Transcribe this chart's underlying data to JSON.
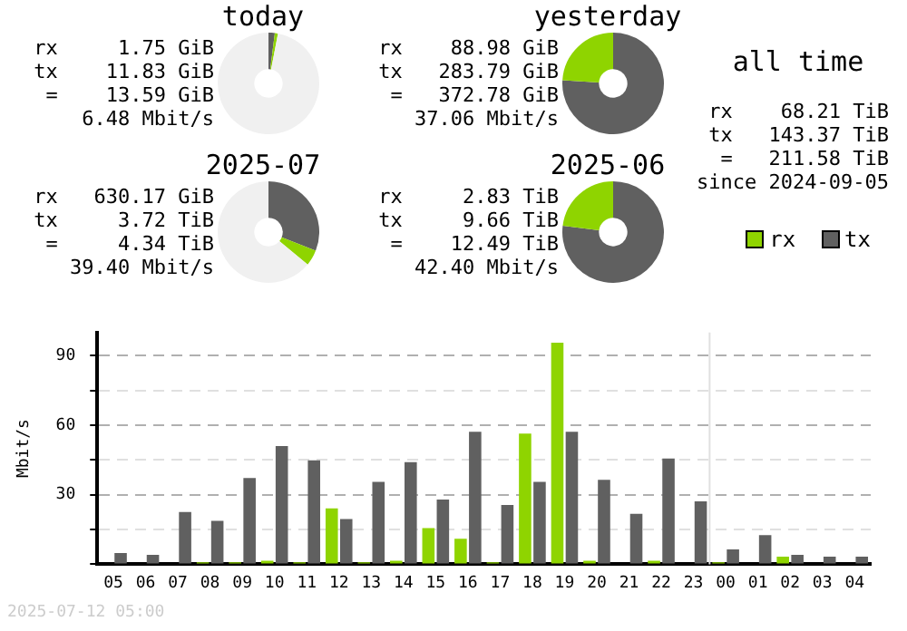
{
  "chart_data": [
    {
      "type": "donut",
      "title": "today",
      "categories": [
        null,
        null,
        null
      ],
      "values": [
        2,
        1,
        97
      ],
      "colors": [
        "#606060",
        "#8fd400",
        "#f0f0f0"
      ],
      "annotations": [
        "rx     1.75 GiB",
        "tx    11.83 GiB",
        " =    13.59 GiB",
        "6.48 Mbit/s"
      ]
    },
    {
      "type": "donut",
      "title": "yesterday",
      "categories": [
        null,
        null
      ],
      "values": [
        76,
        24
      ],
      "colors": [
        "#606060",
        "#8fd400"
      ],
      "annotations": [
        "rx    88.98 GiB",
        "tx   283.79 GiB",
        " =   372.78 GiB",
        "37.06 Mbit/s"
      ]
    },
    {
      "type": "other",
      "title": "all time",
      "annotations": [
        "rx    68.21 TiB",
        "tx   143.37 TiB",
        " =   211.58 TiB",
        "since 2024-09-05"
      ]
    },
    {
      "type": "donut",
      "title": "2025-07",
      "categories": [
        null,
        null,
        null
      ],
      "values": [
        31,
        5,
        64
      ],
      "colors": [
        "#606060",
        "#8fd400",
        "#f0f0f0"
      ],
      "annotations": [
        "rx   630.17 GiB",
        "tx     3.72 TiB",
        " =     4.34 TiB",
        "39.40 Mbit/s"
      ]
    },
    {
      "type": "donut",
      "title": "2025-06",
      "categories": [
        null,
        null
      ],
      "values": [
        77,
        23
      ],
      "colors": [
        "#606060",
        "#8fd400"
      ],
      "annotations": [
        "rx     2.83 TiB",
        "tx     9.66 TiB",
        " =    12.49 TiB",
        "42.40 Mbit/s"
      ]
    },
    {
      "type": "bar",
      "ylabel": "Mbit/s",
      "categories": [
        "05",
        "06",
        "07",
        "08",
        "09",
        "10",
        "11",
        "12",
        "13",
        "14",
        "15",
        "16",
        "17",
        "18",
        "19",
        "20",
        "21",
        "22",
        "23",
        "00",
        "01",
        "02",
        "03",
        "04"
      ],
      "series": [
        {
          "name": "rx",
          "color": "#8fd400",
          "values": [
            0,
            0,
            0,
            0.8,
            0.8,
            1.5,
            0.8,
            24.1,
            0.8,
            1.5,
            15.6,
            11.0,
            0.8,
            56.4,
            95.6,
            1.5,
            0,
            1.5,
            0,
            0.8,
            0,
            3.3,
            0,
            0
          ]
        },
        {
          "name": "tx",
          "color": "#606060",
          "values": [
            4.9,
            4.1,
            22.6,
            18.7,
            37.2,
            51,
            44.9,
            19.5,
            35.6,
            44.1,
            27.9,
            57.2,
            25.6,
            35.6,
            57.2,
            36.4,
            21.8,
            45.6,
            27.2,
            6.4,
            12.6,
            4.1,
            3.3,
            3.3
          ]
        }
      ],
      "ylim": [
        0,
        100
      ],
      "yticks": [
        {
          "value": 0,
          "label": null
        },
        {
          "value": 15,
          "label": null
        },
        30,
        {
          "value": 45,
          "label": null
        },
        60,
        {
          "value": 75,
          "label": null
        },
        90
      ],
      "grid": "y",
      "legend": "top right",
      "ref_lines": [
        {
          "axis": "x",
          "value": "00",
          "color": "#e0e0e0"
        }
      ],
      "annotations": [
        "2025-07-12 05:00"
      ]
    }
  ]
}
